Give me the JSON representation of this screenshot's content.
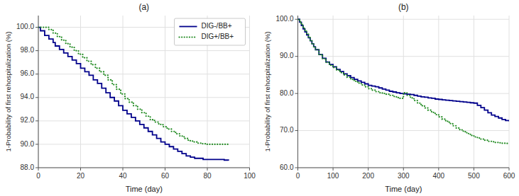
{
  "chart_data": [
    {
      "type": "step",
      "title": "(a)",
      "x_label": "Time (day)",
      "y_label": "1-Probability of first rehospitalization (%)",
      "xlim": [
        0,
        100
      ],
      "ylim": [
        88.0,
        101.0
      ],
      "xticks": [
        0,
        20,
        40,
        60,
        80,
        100
      ],
      "yticks": [
        {
          "value": 88.0,
          "label": "88.0"
        },
        {
          "value": 90.0,
          "label": "90.0"
        },
        {
          "value": 92.0,
          "label": "92.0"
        },
        {
          "value": 94.0,
          "label": "94.0"
        },
        {
          "value": 96.0,
          "label": "96.0"
        },
        {
          "value": 98.0,
          "label": "98.0"
        },
        {
          "value": 100.0,
          "label": "100.0"
        }
      ],
      "grid": true,
      "legend": "upper right",
      "series": [
        {
          "name": "DIG-/BB+",
          "color": "#00008B",
          "line_style": "solid",
          "x": [
            0,
            1,
            3,
            5,
            7,
            8,
            10,
            12,
            14,
            16,
            18,
            20,
            22,
            24,
            26,
            28,
            30,
            32,
            34,
            36,
            38,
            40,
            42,
            44,
            46,
            48,
            50,
            52,
            54,
            56,
            58,
            60,
            62,
            64,
            66,
            68,
            70,
            72,
            74,
            76,
            78,
            80,
            82,
            84,
            86,
            88,
            90
          ],
          "values": [
            100.0,
            99.7,
            99.3,
            99.0,
            98.7,
            98.4,
            98.1,
            97.8,
            97.5,
            97.2,
            96.9,
            96.5,
            96.2,
            95.9,
            95.5,
            95.2,
            94.8,
            94.4,
            94.0,
            93.7,
            93.3,
            92.9,
            92.6,
            92.3,
            92.0,
            91.7,
            91.4,
            91.1,
            90.8,
            90.5,
            90.2,
            90.0,
            89.8,
            89.6,
            89.4,
            89.2,
            89.0,
            88.9,
            88.8,
            88.8,
            88.7,
            88.7,
            88.7,
            88.7,
            88.7,
            88.65,
            88.6
          ]
        },
        {
          "name": "DIG+/BB+",
          "color": "#228B22",
          "line_style": "dotted",
          "x": [
            0,
            3,
            5,
            7,
            9,
            11,
            13,
            15,
            17,
            19,
            21,
            23,
            25,
            27,
            29,
            31,
            33,
            35,
            37,
            39,
            41,
            43,
            45,
            47,
            49,
            51,
            53,
            55,
            57,
            59,
            61,
            63,
            65,
            67,
            69,
            71,
            73,
            75,
            77,
            79,
            81,
            83,
            85,
            87,
            89,
            90
          ],
          "values": [
            100.0,
            100.0,
            99.8,
            99.5,
            99.2,
            98.9,
            98.6,
            98.3,
            98.0,
            97.7,
            97.4,
            97.1,
            96.8,
            96.5,
            96.2,
            95.9,
            95.5,
            95.1,
            94.7,
            94.3,
            93.9,
            93.6,
            93.3,
            93.0,
            92.7,
            92.4,
            92.1,
            91.9,
            91.7,
            91.5,
            91.3,
            91.1,
            90.9,
            90.7,
            90.5,
            90.3,
            90.2,
            90.1,
            90.05,
            90.0,
            90.0,
            90.0,
            90.0,
            90.0,
            90.0,
            90.0
          ]
        }
      ]
    },
    {
      "type": "step",
      "title": "(b)",
      "x_label": "Time (day)",
      "y_label": "1-Probability of first rehospitalization (%)",
      "xlim": [
        0,
        600
      ],
      "ylim": [
        60.0,
        101.0
      ],
      "xticks": [
        0,
        100,
        200,
        300,
        400,
        500,
        600
      ],
      "yticks": [
        {
          "value": 60.0,
          "label": "60.0"
        },
        {
          "value": 70.0,
          "label": "70.0"
        },
        {
          "value": 80.0,
          "label": "80.0"
        },
        {
          "value": 90.0,
          "label": "90.0"
        },
        {
          "value": 100.0,
          "label": "100.0"
        }
      ],
      "grid": true,
      "series": [
        {
          "color": "#00008B",
          "line_style": "solid",
          "x": [
            0,
            5,
            10,
            15,
            20,
            25,
            30,
            35,
            40,
            45,
            50,
            60,
            70,
            80,
            90,
            100,
            110,
            120,
            130,
            140,
            150,
            160,
            170,
            180,
            190,
            200,
            210,
            220,
            230,
            240,
            250,
            260,
            270,
            280,
            290,
            300,
            310,
            320,
            330,
            340,
            350,
            360,
            370,
            380,
            390,
            400,
            410,
            420,
            430,
            440,
            450,
            460,
            470,
            480,
            490,
            500,
            510,
            520,
            530,
            540,
            550,
            560,
            570,
            580,
            590,
            600
          ],
          "values": [
            100.0,
            99.2,
            98.3,
            97.4,
            96.6,
            95.8,
            95.0,
            94.2,
            93.4,
            92.6,
            91.8,
            90.5,
            89.5,
            88.5,
            87.8,
            87.2,
            86.5,
            85.9,
            85.3,
            84.8,
            84.3,
            83.8,
            83.4,
            83.0,
            82.6,
            82.2,
            82.0,
            81.8,
            81.5,
            81.2,
            80.9,
            80.6,
            80.4,
            80.2,
            80.0,
            79.9,
            79.8,
            79.7,
            79.5,
            79.3,
            79.1,
            79.0,
            78.8,
            78.7,
            78.5,
            78.4,
            78.3,
            78.2,
            78.1,
            78.0,
            77.9,
            77.8,
            77.7,
            77.6,
            77.5,
            77.4,
            76.8,
            76.2,
            75.5,
            74.8,
            74.2,
            73.8,
            73.4,
            73.0,
            72.7,
            72.5
          ]
        },
        {
          "color": "#228B22",
          "line_style": "dotted",
          "x": [
            0,
            5,
            10,
            15,
            20,
            25,
            30,
            35,
            40,
            45,
            50,
            60,
            70,
            80,
            90,
            100,
            110,
            120,
            130,
            140,
            150,
            160,
            170,
            180,
            190,
            200,
            210,
            220,
            230,
            240,
            250,
            260,
            270,
            280,
            290,
            300,
            310,
            320,
            330,
            340,
            350,
            360,
            370,
            380,
            390,
            400,
            410,
            420,
            430,
            440,
            450,
            460,
            470,
            480,
            490,
            500,
            510,
            520,
            530,
            540,
            550,
            560,
            570,
            580,
            590,
            600
          ],
          "values": [
            100.0,
            99.3,
            98.5,
            97.6,
            96.8,
            96.0,
            95.1,
            94.2,
            93.4,
            92.6,
            91.8,
            90.5,
            89.4,
            88.4,
            87.6,
            87.0,
            86.3,
            85.6,
            85.0,
            84.4,
            83.8,
            83.3,
            82.8,
            82.3,
            81.8,
            81.3,
            80.9,
            80.5,
            80.2,
            80.0,
            79.8,
            79.5,
            79.2,
            78.9,
            78.7,
            80.2,
            79.5,
            78.8,
            78.1,
            77.4,
            76.7,
            76.1,
            75.5,
            74.9,
            74.3,
            73.7,
            73.1,
            72.5,
            71.9,
            71.3,
            70.7,
            70.2,
            69.7,
            69.2,
            68.7,
            68.3,
            68.0,
            67.7,
            67.4,
            67.1,
            67.0,
            66.8,
            66.7,
            66.6,
            66.55,
            66.5
          ]
        }
      ]
    }
  ]
}
